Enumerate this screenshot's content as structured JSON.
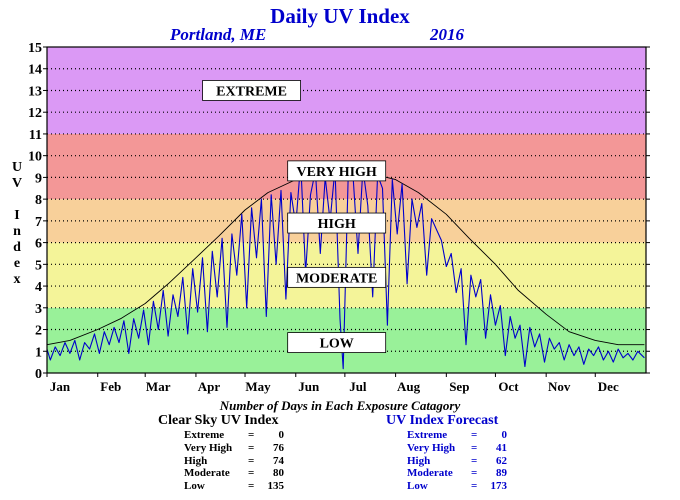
{
  "title": "Daily UV Index",
  "location": "Portland, ME",
  "year": "2016",
  "y_axis_label": [
    "U",
    "V",
    "",
    "I",
    "n",
    "d",
    "e",
    "x"
  ],
  "footer_caption": "Number of Days in Each Exposure Catagory",
  "clear_sky": {
    "title": "Clear Sky UV Index",
    "rows": [
      {
        "label": "Extreme",
        "eq": "=",
        "value": "0"
      },
      {
        "label": "Very High",
        "eq": "=",
        "value": "76"
      },
      {
        "label": "High",
        "eq": "=",
        "value": "74"
      },
      {
        "label": "Moderate",
        "eq": "=",
        "value": "80"
      },
      {
        "label": "Low",
        "eq": "=",
        "value": "135"
      }
    ]
  },
  "forecast": {
    "title": "UV Index Forecast",
    "rows": [
      {
        "label": "Extreme",
        "eq": "=",
        "value": "0"
      },
      {
        "label": "Very High",
        "eq": "=",
        "value": "41"
      },
      {
        "label": "High",
        "eq": "=",
        "value": "62"
      },
      {
        "label": "Moderate",
        "eq": "=",
        "value": "89"
      },
      {
        "label": "Low",
        "eq": "=",
        "value": "173"
      }
    ]
  },
  "chart_data": {
    "type": "line",
    "ylim": [
      0,
      15
    ],
    "y_ticks": [
      "0",
      "1",
      "2",
      "3",
      "4",
      "5",
      "6",
      "7",
      "8",
      "9",
      "10",
      "11",
      "12",
      "13",
      "14",
      "15"
    ],
    "x_tick_labels": [
      "Jan",
      "Feb",
      "Mar",
      "Apr",
      "May",
      "Jun",
      "Jul",
      "Aug",
      "Sep",
      "Oct",
      "Nov",
      "Dec"
    ],
    "month_start_days": [
      1,
      32,
      61,
      92,
      122,
      153,
      183,
      214,
      245,
      275,
      306,
      336
    ],
    "days_in_year": 366,
    "grid": "horizontal dotted",
    "bands": [
      {
        "label": "LOW",
        "min": 0,
        "max": 3,
        "color": "#99f199"
      },
      {
        "label": "MODERATE",
        "min": 3,
        "max": 6,
        "color": "#f4f499"
      },
      {
        "label": "HIGH",
        "min": 6,
        "max": 8,
        "color": "#f8d09a"
      },
      {
        "label": "VERY HIGH",
        "min": 8,
        "max": 11,
        "color": "#f39797"
      },
      {
        "label": "EXTREME",
        "min": 11,
        "max": 15,
        "color": "#db99f5"
      }
    ],
    "band_label_values": [
      {
        "label": "EXTREME",
        "y": 13,
        "center_day": 126
      },
      {
        "label": "VERY HIGH",
        "y": 9.3,
        "center_day": 178
      },
      {
        "label": "HIGH",
        "y": 6.9,
        "center_day": 178
      },
      {
        "label": "MODERATE",
        "y": 4.4,
        "center_day": 178
      },
      {
        "label": "LOW",
        "y": 1.4,
        "center_day": 178
      }
    ],
    "series": [
      {
        "name": "Clear Sky UV Index",
        "color": "#000000",
        "points": [
          [
            1,
            1.3
          ],
          [
            15,
            1.5
          ],
          [
            32,
            2.0
          ],
          [
            46,
            2.5
          ],
          [
            61,
            3.2
          ],
          [
            75,
            4.1
          ],
          [
            92,
            5.3
          ],
          [
            106,
            6.3
          ],
          [
            122,
            7.5
          ],
          [
            136,
            8.3
          ],
          [
            153,
            8.9
          ],
          [
            167,
            9.4
          ],
          [
            175,
            9.5
          ],
          [
            183,
            9.5
          ],
          [
            198,
            9.2
          ],
          [
            214,
            8.9
          ],
          [
            228,
            8.3
          ],
          [
            245,
            7.3
          ],
          [
            259,
            6.2
          ],
          [
            275,
            5.0
          ],
          [
            289,
            3.8
          ],
          [
            306,
            2.7
          ],
          [
            320,
            1.9
          ],
          [
            336,
            1.5
          ],
          [
            350,
            1.3
          ],
          [
            366,
            1.3
          ]
        ]
      },
      {
        "name": "UV Index Forecast",
        "color": "#0000cc",
        "points": [
          [
            1,
            1.1
          ],
          [
            3,
            0.6
          ],
          [
            6,
            1.2
          ],
          [
            9,
            0.8
          ],
          [
            12,
            1.4
          ],
          [
            15,
            0.9
          ],
          [
            18,
            1.5
          ],
          [
            21,
            0.6
          ],
          [
            24,
            1.4
          ],
          [
            27,
            1.1
          ],
          [
            30,
            1.8
          ],
          [
            33,
            0.9
          ],
          [
            36,
            1.9
          ],
          [
            39,
            1.3
          ],
          [
            42,
            2.1
          ],
          [
            45,
            1.4
          ],
          [
            48,
            2.4
          ],
          [
            51,
            0.9
          ],
          [
            54,
            2.5
          ],
          [
            57,
            1.6
          ],
          [
            60,
            2.9
          ],
          [
            63,
            1.3
          ],
          [
            66,
            3.3
          ],
          [
            69,
            2.0
          ],
          [
            72,
            3.8
          ],
          [
            75,
            1.7
          ],
          [
            78,
            3.6
          ],
          [
            81,
            2.6
          ],
          [
            84,
            4.4
          ],
          [
            87,
            1.8
          ],
          [
            90,
            4.8
          ],
          [
            93,
            2.8
          ],
          [
            96,
            5.3
          ],
          [
            99,
            1.9
          ],
          [
            102,
            5.6
          ],
          [
            105,
            3.5
          ],
          [
            108,
            6.2
          ],
          [
            111,
            2.1
          ],
          [
            114,
            6.4
          ],
          [
            117,
            4.5
          ],
          [
            120,
            7.3
          ],
          [
            123,
            3.0
          ],
          [
            126,
            7.6
          ],
          [
            129,
            5.3
          ],
          [
            132,
            8.0
          ],
          [
            135,
            2.6
          ],
          [
            138,
            8.2
          ],
          [
            141,
            5.0
          ],
          [
            144,
            8.4
          ],
          [
            147,
            3.4
          ],
          [
            150,
            8.3
          ],
          [
            153,
            6.8
          ],
          [
            156,
            9.7
          ],
          [
            159,
            4.6
          ],
          [
            162,
            8.2
          ],
          [
            165,
            9.3
          ],
          [
            168,
            5.5
          ],
          [
            171,
            9.0
          ],
          [
            174,
            7.0
          ],
          [
            177,
            9.4
          ],
          [
            180,
            2.5
          ],
          [
            182,
            0.2
          ],
          [
            185,
            8.9
          ],
          [
            188,
            9.1
          ],
          [
            191,
            5.5
          ],
          [
            194,
            9.4
          ],
          [
            197,
            7.7
          ],
          [
            200,
            3.5
          ],
          [
            203,
            9.1
          ],
          [
            206,
            8.5
          ],
          [
            209,
            2.2
          ],
          [
            212,
            8.9
          ],
          [
            215,
            6.4
          ],
          [
            218,
            8.7
          ],
          [
            221,
            4.1
          ],
          [
            224,
            8.0
          ],
          [
            227,
            6.7
          ],
          [
            230,
            7.8
          ],
          [
            233,
            4.5
          ],
          [
            236,
            7.1
          ],
          [
            239,
            6.6
          ],
          [
            242,
            6.1
          ],
          [
            245,
            4.9
          ],
          [
            248,
            5.5
          ],
          [
            251,
            3.7
          ],
          [
            254,
            4.8
          ],
          [
            257,
            1.3
          ],
          [
            260,
            4.5
          ],
          [
            263,
            3.5
          ],
          [
            266,
            4.3
          ],
          [
            269,
            1.6
          ],
          [
            272,
            3.6
          ],
          [
            275,
            2.2
          ],
          [
            278,
            3.1
          ],
          [
            281,
            0.8
          ],
          [
            284,
            2.6
          ],
          [
            287,
            1.6
          ],
          [
            290,
            2.2
          ],
          [
            293,
            0.3
          ],
          [
            296,
            2.1
          ],
          [
            299,
            1.2
          ],
          [
            302,
            1.8
          ],
          [
            305,
            0.5
          ],
          [
            308,
            1.6
          ],
          [
            311,
            1.1
          ],
          [
            314,
            1.4
          ],
          [
            317,
            0.6
          ],
          [
            320,
            1.3
          ],
          [
            323,
            0.8
          ],
          [
            326,
            1.2
          ],
          [
            329,
            0.4
          ],
          [
            332,
            1.1
          ],
          [
            335,
            0.8
          ],
          [
            338,
            1.2
          ],
          [
            341,
            0.6
          ],
          [
            344,
            1.0
          ],
          [
            347,
            0.5
          ],
          [
            350,
            1.1
          ],
          [
            353,
            0.7
          ],
          [
            356,
            0.9
          ],
          [
            359,
            0.6
          ],
          [
            362,
            1.0
          ],
          [
            366,
            0.7
          ]
        ]
      }
    ]
  }
}
